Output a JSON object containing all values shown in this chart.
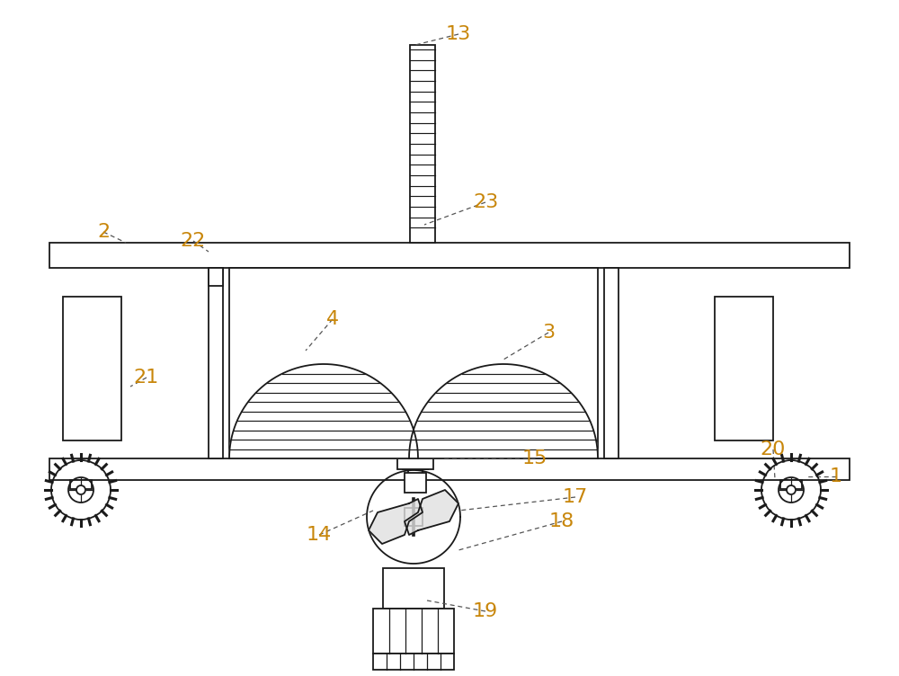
{
  "bg_color": "#ffffff",
  "line_color": "#1a1a1a",
  "label_color": "#c8860a",
  "figsize": [
    10.0,
    7.52
  ],
  "dpi": 100,
  "lw": 1.3
}
